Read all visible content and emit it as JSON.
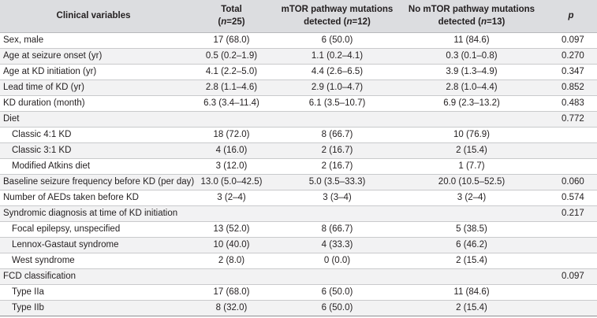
{
  "header": {
    "variable": "Clinical variables",
    "total_line1": "Total",
    "total_n_label": "n",
    "total_n_value": "=25",
    "mtor_line1": "mTOR pathway mutations",
    "mtor_line2_prefix": "detected (",
    "mtor_n_label": "n",
    "mtor_n_value": "=12)",
    "nomtor_line1": "No mTOR pathway mutations",
    "nomtor_line2_prefix": "detected (",
    "nomtor_n_label": "n",
    "nomtor_n_value": "=13)",
    "p": "p"
  },
  "rows": [
    {
      "label": "Sex, male",
      "total": "17 (68.0)",
      "mtor": "6 (50.0)",
      "nomtor": "11 (84.6)",
      "p": "0.097"
    },
    {
      "label": "Age at seizure onset (yr)",
      "total": "0.5 (0.2–1.9)",
      "mtor": "1.1 (0.2–4.1)",
      "nomtor": "0.3 (0.1–0.8)",
      "p": "0.270"
    },
    {
      "label": "Age at KD initiation (yr)",
      "total": "4.1 (2.2–5.0)",
      "mtor": "4.4 (2.6–6.5)",
      "nomtor": "3.9 (1.3–4.9)",
      "p": "0.347"
    },
    {
      "label": "Lead time of KD (yr)",
      "total": "2.8 (1.1–4.6)",
      "mtor": "2.9 (1.0–4.7)",
      "nomtor": "2.8 (1.0–4.4)",
      "p": "0.852"
    },
    {
      "label": "KD duration (month)",
      "total": "6.3 (3.4–11.4)",
      "mtor": "6.1 (3.5–10.7)",
      "nomtor": "6.9 (2.3–13.2)",
      "p": "0.483"
    },
    {
      "label": "Diet",
      "total": "",
      "mtor": "",
      "nomtor": "",
      "p": "0.772"
    },
    {
      "label": "Classic 4:1 KD",
      "sub": true,
      "total": "18 (72.0)",
      "mtor": "8 (66.7)",
      "nomtor": "10 (76.9)",
      "p": ""
    },
    {
      "label": "Classic 3:1 KD",
      "sub": true,
      "total": "4 (16.0)",
      "mtor": "2 (16.7)",
      "nomtor": "2 (15.4)",
      "p": ""
    },
    {
      "label": "Modified Atkins diet",
      "sub": true,
      "total": "3 (12.0)",
      "mtor": "2 (16.7)",
      "nomtor": "1 (7.7)",
      "p": ""
    },
    {
      "label": "Baseline seizure frequency before KD (per day)",
      "total": "13.0 (5.0–42.5)",
      "mtor": "5.0 (3.5–33.3)",
      "nomtor": "20.0 (10.5–52.5)",
      "p": "0.060"
    },
    {
      "label": "Number of AEDs taken before KD",
      "total": "3 (2–4)",
      "mtor": "3 (3–4)",
      "nomtor": "3 (2–4)",
      "p": "0.574"
    },
    {
      "label": "Syndromic diagnosis at time of KD initiation",
      "total": "",
      "mtor": "",
      "nomtor": "",
      "p": "0.217"
    },
    {
      "label": "Focal epilepsy, unspecified",
      "sub": true,
      "total": "13 (52.0)",
      "mtor": "8 (66.7)",
      "nomtor": "5 (38.5)",
      "p": ""
    },
    {
      "label": "Lennox-Gastaut syndrome",
      "sub": true,
      "total": "10 (40.0)",
      "mtor": "4 (33.3)",
      "nomtor": "6 (46.2)",
      "p": ""
    },
    {
      "label": "West syndrome",
      "sub": true,
      "total": "2 (8.0)",
      "mtor": "0 (0.0)",
      "nomtor": "2 (15.4)",
      "p": ""
    },
    {
      "label": "FCD classification",
      "total": "",
      "mtor": "",
      "nomtor": "",
      "p": "0.097"
    },
    {
      "label": "Type IIa",
      "sub": true,
      "total": "17 (68.0)",
      "mtor": "6 (50.0)",
      "nomtor": "11 (84.6)",
      "p": ""
    },
    {
      "label": "Type IIb",
      "sub": true,
      "total": "8 (32.0)",
      "mtor": "6 (50.0)",
      "nomtor": "2 (15.4)",
      "p": ""
    }
  ]
}
